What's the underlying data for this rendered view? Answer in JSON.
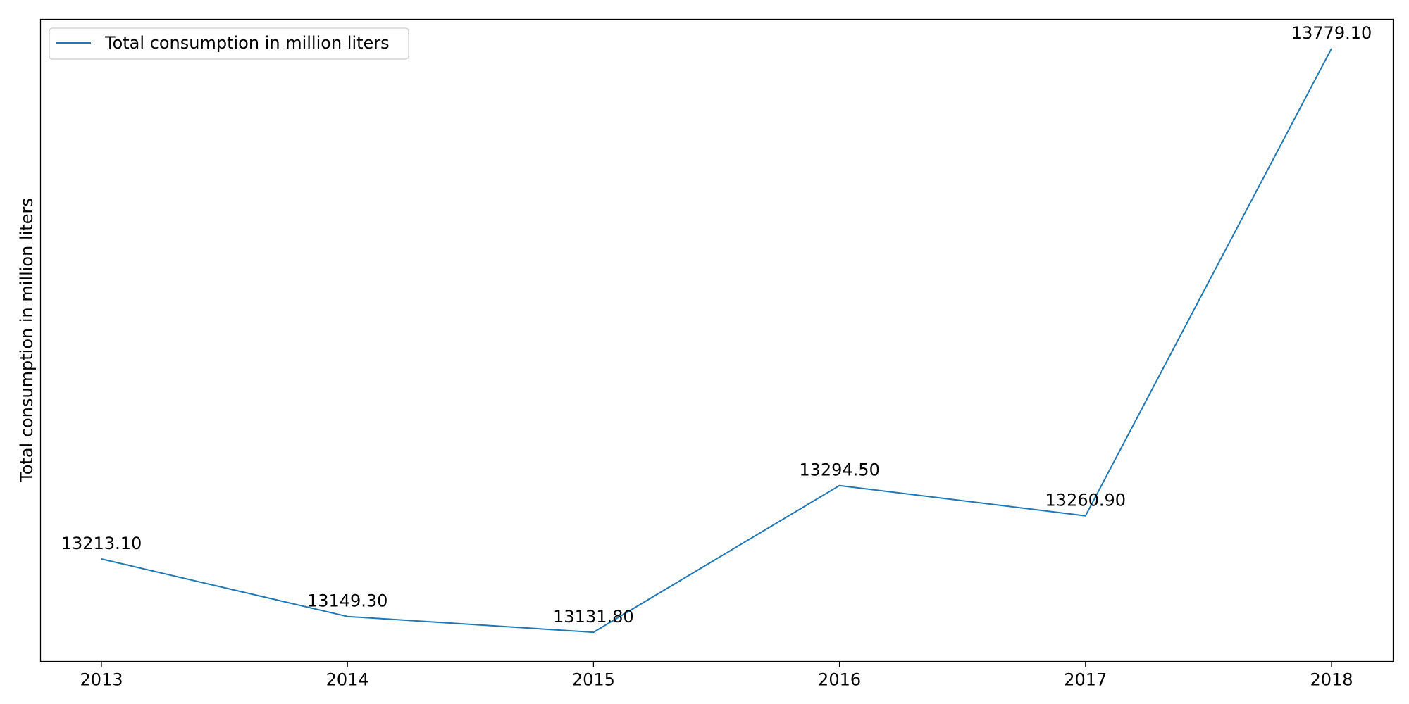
{
  "chart_data": {
    "type": "line",
    "title": "",
    "xlabel": "",
    "ylabel": "Total consumption in million liters",
    "x": [
      "2013",
      "2014",
      "2015",
      "2016",
      "2017",
      "2018"
    ],
    "series": [
      {
        "name": "Total consumption in million liters",
        "values": [
          13213.1,
          13149.3,
          13131.8,
          13294.5,
          13260.9,
          13779.1
        ],
        "labels": [
          "13213.10",
          "13149.30",
          "13131.80",
          "13294.50",
          "13260.90",
          "13779.10"
        ],
        "color": "#1f77b4"
      }
    ],
    "ylim": [
      13099.5,
      13811.4
    ],
    "y_ticks_shown": false,
    "grid": false,
    "legend": "top-left"
  }
}
